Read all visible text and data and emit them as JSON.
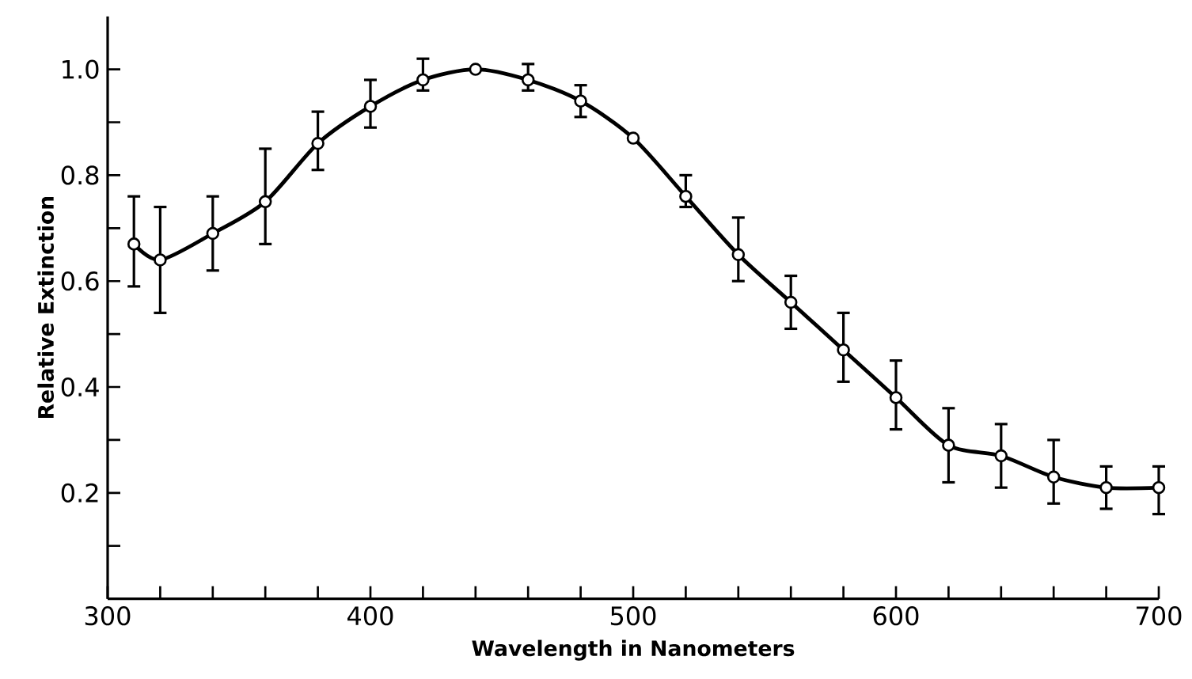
{
  "chart_data": {
    "type": "line",
    "xlabel": "Wavelength in Nanometers",
    "ylabel": "Relative Extinction",
    "xlim": [
      300,
      700
    ],
    "ylim": [
      0,
      1.1
    ],
    "xticks": [
      300,
      {
        "value": 320,
        "label": null
      },
      {
        "value": 340,
        "label": null
      },
      {
        "value": 360,
        "label": null
      },
      {
        "value": 380,
        "label": null
      },
      400,
      {
        "value": 420,
        "label": null
      },
      {
        "value": 440,
        "label": null
      },
      {
        "value": 460,
        "label": null
      },
      {
        "value": 480,
        "label": null
      },
      500,
      {
        "value": 520,
        "label": null
      },
      {
        "value": 540,
        "label": null
      },
      {
        "value": 560,
        "label": null
      },
      {
        "value": 580,
        "label": null
      },
      600,
      {
        "value": 620,
        "label": null
      },
      {
        "value": 640,
        "label": null
      },
      {
        "value": 660,
        "label": null
      },
      {
        "value": 680,
        "label": null
      },
      700
    ],
    "yticks": [
      {
        "value": 0.1,
        "label": null
      },
      0.2,
      {
        "value": 0.3,
        "label": null
      },
      0.4,
      {
        "value": 0.5,
        "label": null
      },
      0.6,
      {
        "value": 0.7,
        "label": null
      },
      0.8,
      {
        "value": 0.9,
        "label": null
      },
      {
        "value": 1.0,
        "label": "1.0"
      }
    ],
    "x": [
      310,
      320,
      340,
      360,
      380,
      400,
      420,
      440,
      460,
      480,
      500,
      520,
      540,
      560,
      580,
      600,
      620,
      640,
      660,
      680,
      700
    ],
    "series": [
      {
        "color": "#000000",
        "marker": "circle",
        "line_style": "solid",
        "values": [
          0.67,
          0.64,
          0.69,
          0.75,
          0.86,
          0.93,
          0.98,
          1.0,
          0.98,
          0.94,
          0.87,
          0.76,
          0.65,
          0.56,
          0.47,
          0.38,
          0.29,
          0.27,
          0.23,
          0.21,
          0.21
        ],
        "errors": [
          [
            0.59,
            0.76
          ],
          [
            0.54,
            0.74
          ],
          [
            0.62,
            0.76
          ],
          [
            0.67,
            0.85
          ],
          [
            0.81,
            0.92
          ],
          [
            0.89,
            0.98
          ],
          [
            0.96,
            1.02
          ],
          null,
          [
            0.96,
            1.01
          ],
          [
            0.91,
            0.97
          ],
          null,
          [
            0.74,
            0.8
          ],
          [
            0.6,
            0.72
          ],
          [
            0.51,
            0.61
          ],
          [
            0.41,
            0.54
          ],
          [
            0.32,
            0.45
          ],
          [
            0.22,
            0.36
          ],
          [
            0.21,
            0.33
          ],
          [
            0.18,
            0.3
          ],
          [
            0.17,
            0.25
          ],
          [
            0.16,
            0.25
          ]
        ]
      }
    ]
  }
}
